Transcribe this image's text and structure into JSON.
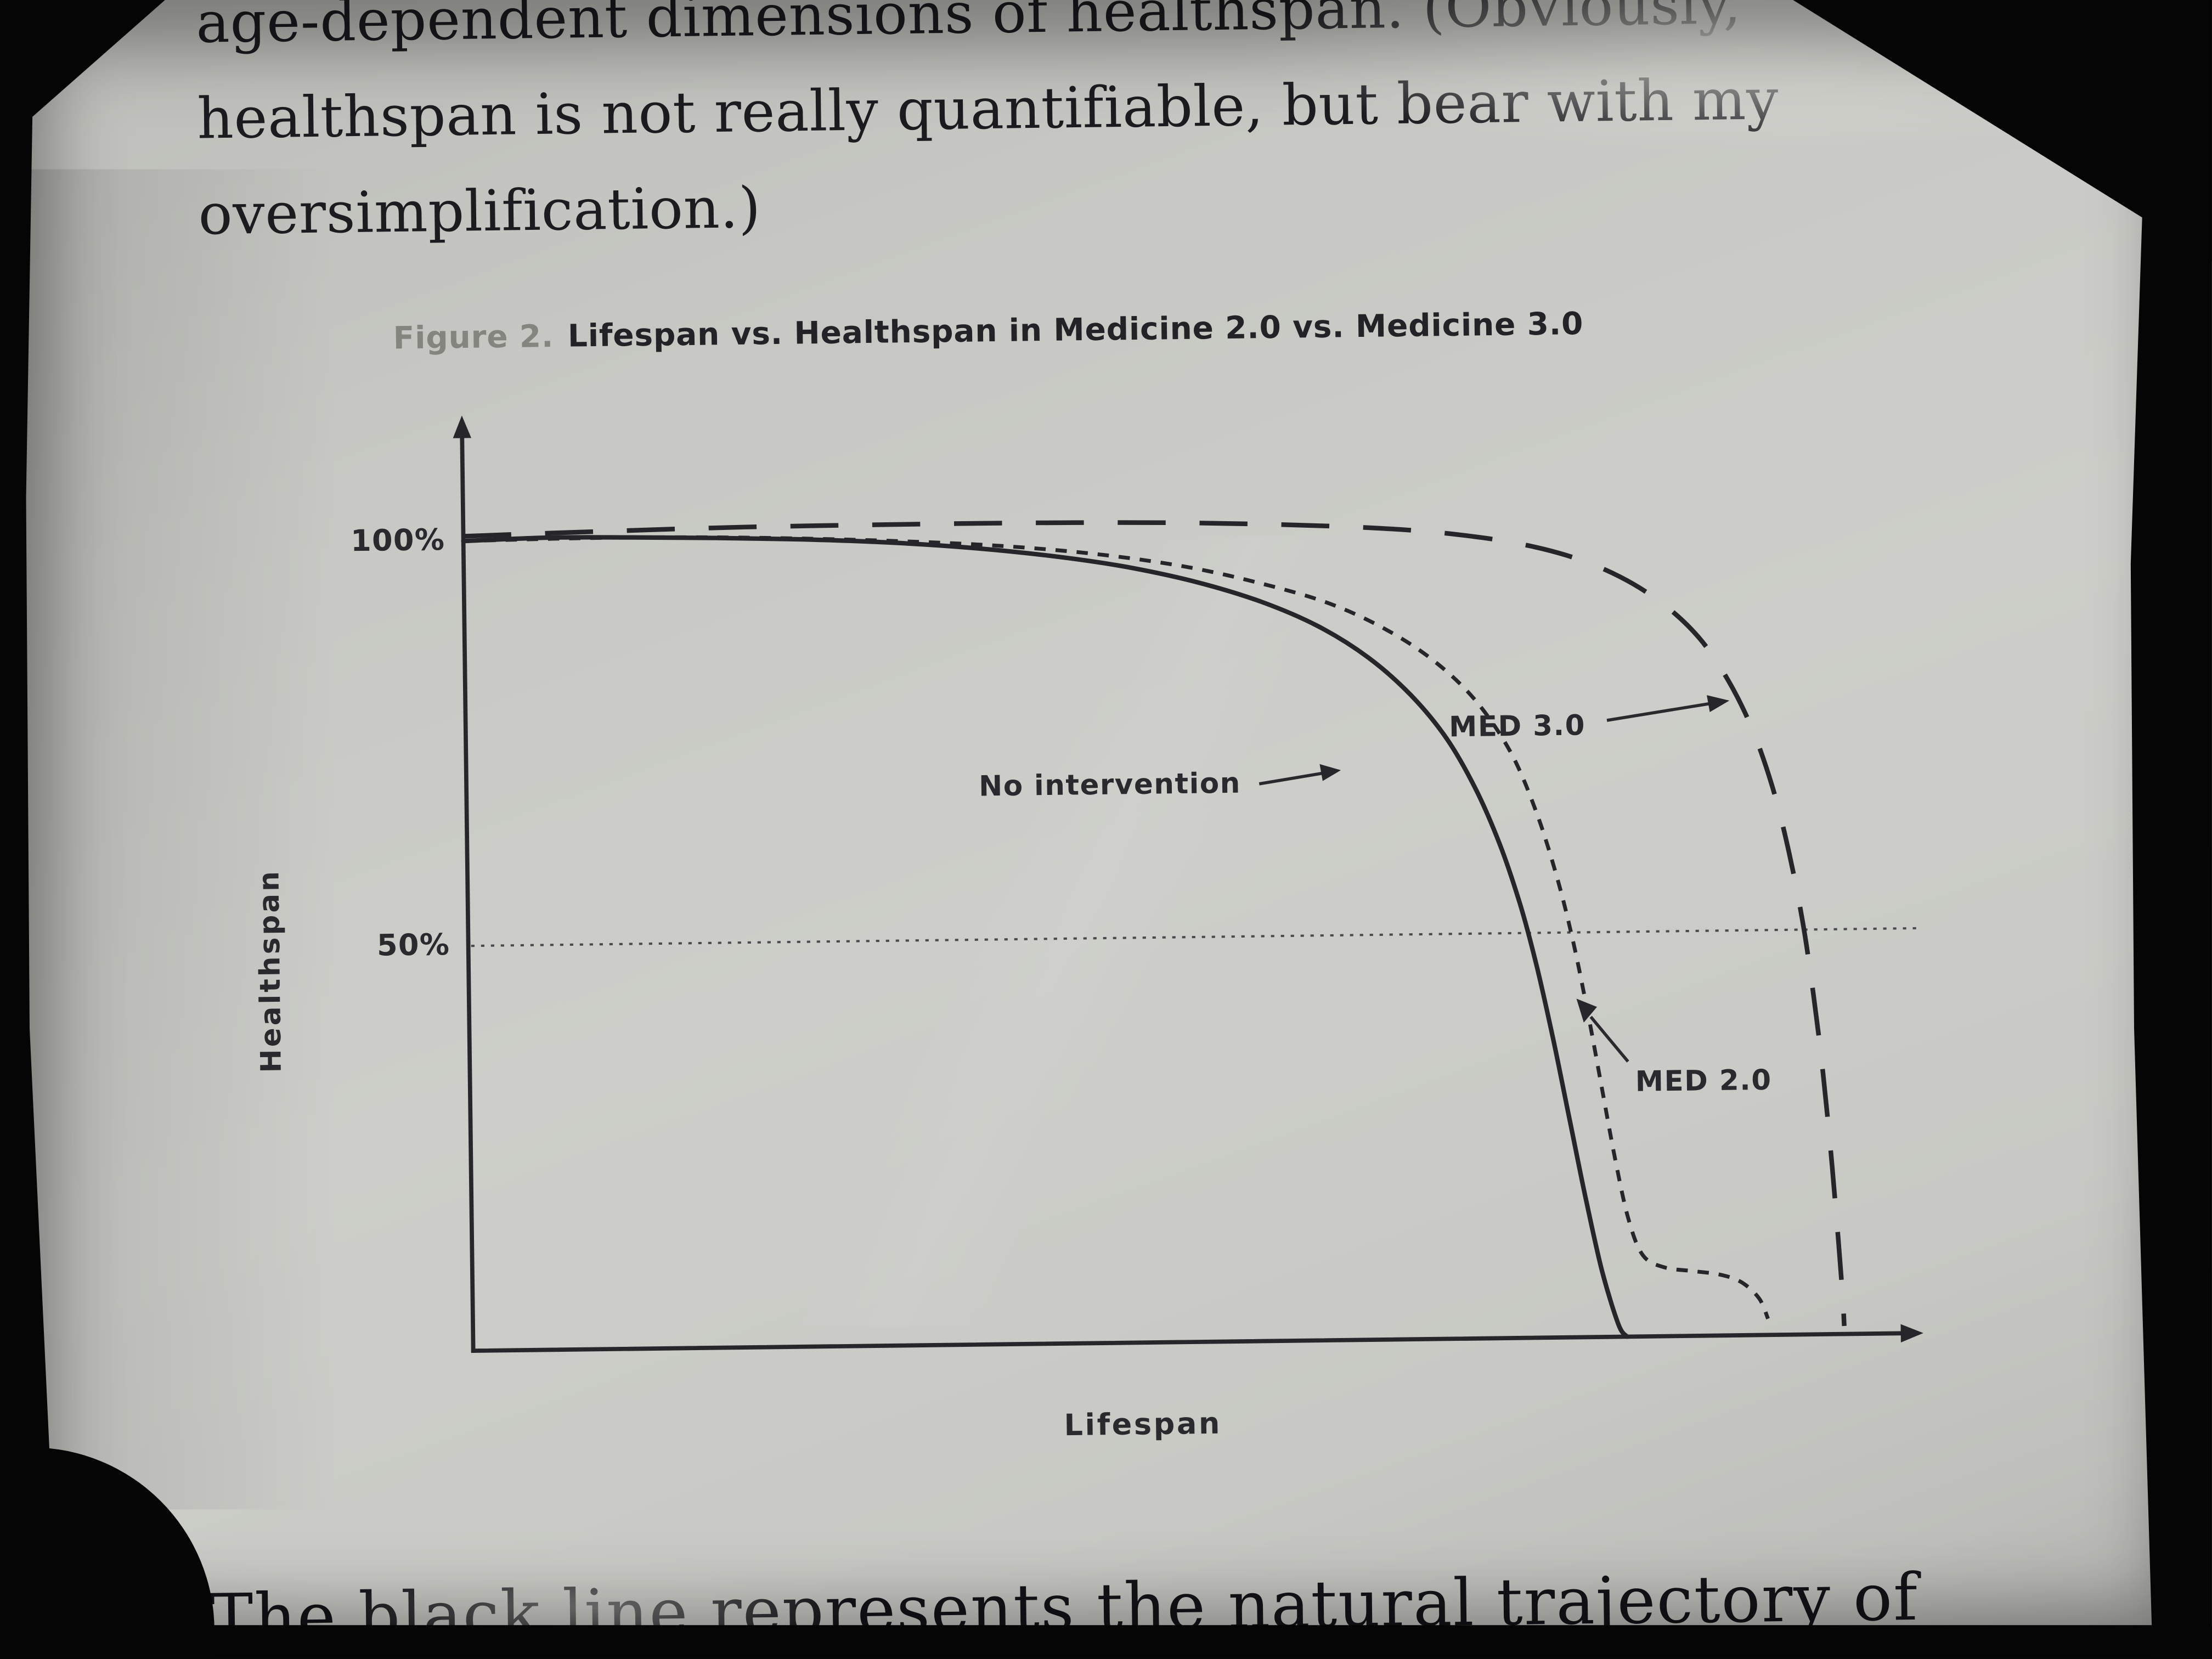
{
  "device": {
    "screen_color": "#c9cac5",
    "bezel_color": "#050506",
    "ink_color": "#26262a"
  },
  "page_text": {
    "top_lines": [
      "age-dependent dimensions of healthspan. (Obviously,",
      "healthspan is not really quantifiable, but bear with my",
      "oversimplification.)"
    ],
    "bottom_line": "The black line represents the natural trajectory of"
  },
  "figure_caption": {
    "label": "Figure 2.",
    "title": "Lifespan vs. Healthspan in Medicine 2.0 vs. Medicine 3.0"
  },
  "chart_data": {
    "type": "line",
    "title": "Figure 2. Lifespan vs. Healthspan in Medicine 2.0 vs. Medicine 3.0",
    "xlabel": "Lifespan",
    "ylabel": "Healthspan",
    "grid": false,
    "legend_position": "none",
    "x_axis": {
      "label": "Lifespan",
      "range": [
        0,
        1
      ],
      "ticks": []
    },
    "y_axis": {
      "label": "Healthspan",
      "range": [
        0,
        105
      ],
      "ticks": [
        {
          "value": 100,
          "label": "100%"
        },
        {
          "value": 50,
          "label": "50%"
        }
      ]
    },
    "reference_lines": [
      {
        "axis": "y",
        "value": 50,
        "style": "dotted"
      }
    ],
    "series": [
      {
        "name": "No intervention",
        "line_style": "solid",
        "color": "#26262a",
        "points": [
          [
            0,
            100
          ],
          [
            0.06,
            100.3
          ],
          [
            0.12,
            100.2
          ],
          [
            0.18,
            100
          ],
          [
            0.24,
            99.7
          ],
          [
            0.3,
            99.2
          ],
          [
            0.36,
            98.4
          ],
          [
            0.42,
            97.2
          ],
          [
            0.47,
            95.8
          ],
          [
            0.52,
            93.8
          ],
          [
            0.565,
            91.3
          ],
          [
            0.605,
            88.2
          ],
          [
            0.64,
            84.3
          ],
          [
            0.67,
            79.6
          ],
          [
            0.695,
            74.2
          ],
          [
            0.715,
            68
          ],
          [
            0.732,
            61
          ],
          [
            0.746,
            53.5
          ],
          [
            0.757,
            46
          ],
          [
            0.768,
            37
          ],
          [
            0.779,
            27
          ],
          [
            0.79,
            17
          ],
          [
            0.801,
            8
          ],
          [
            0.812,
            1.5
          ],
          [
            0.818,
            0
          ]
        ]
      },
      {
        "name": "MED 2.0",
        "line_style": "short-dash",
        "color": "#26262a",
        "points": [
          [
            0,
            100
          ],
          [
            0.1,
            100.2
          ],
          [
            0.2,
            100
          ],
          [
            0.3,
            99.4
          ],
          [
            0.38,
            98.6
          ],
          [
            0.45,
            97.4
          ],
          [
            0.51,
            95.8
          ],
          [
            0.56,
            93.8
          ],
          [
            0.61,
            91.2
          ],
          [
            0.65,
            88
          ],
          [
            0.685,
            84
          ],
          [
            0.715,
            79
          ],
          [
            0.74,
            72.5
          ],
          [
            0.758,
            65
          ],
          [
            0.772,
            57
          ],
          [
            0.783,
            49
          ],
          [
            0.793,
            40
          ],
          [
            0.802,
            31
          ],
          [
            0.811,
            22
          ],
          [
            0.82,
            14.5
          ],
          [
            0.83,
            10
          ],
          [
            0.845,
            8.5
          ],
          [
            0.865,
            8
          ],
          [
            0.885,
            7.5
          ],
          [
            0.9,
            6.5
          ],
          [
            0.912,
            4.5
          ],
          [
            0.918,
            2
          ]
        ]
      },
      {
        "name": "MED 3.0",
        "line_style": "long-dash",
        "color": "#26262a",
        "points": [
          [
            0,
            100.6
          ],
          [
            0.1,
            101
          ],
          [
            0.2,
            101.3
          ],
          [
            0.3,
            101.4
          ],
          [
            0.4,
            101.4
          ],
          [
            0.5,
            101.2
          ],
          [
            0.58,
            100.8
          ],
          [
            0.65,
            100.2
          ],
          [
            0.7,
            99.4
          ],
          [
            0.745,
            98.2
          ],
          [
            0.785,
            96.4
          ],
          [
            0.82,
            93.8
          ],
          [
            0.85,
            90.4
          ],
          [
            0.875,
            86.2
          ],
          [
            0.895,
            81
          ],
          [
            0.912,
            74.8
          ],
          [
            0.926,
            67.5
          ],
          [
            0.937,
            59.5
          ],
          [
            0.946,
            51
          ],
          [
            0.953,
            42
          ],
          [
            0.959,
            32.5
          ],
          [
            0.964,
            22.5
          ],
          [
            0.968,
            13
          ],
          [
            0.971,
            5
          ],
          [
            0.972,
            1
          ]
        ]
      }
    ],
    "annotations": [
      {
        "text": "No intervention",
        "arrow_to_series": "No intervention"
      },
      {
        "text": "MED 3.0",
        "arrow_to_series": "MED 3.0"
      },
      {
        "text": "MED 2.0",
        "arrow_to_series": "MED 2.0"
      }
    ]
  }
}
